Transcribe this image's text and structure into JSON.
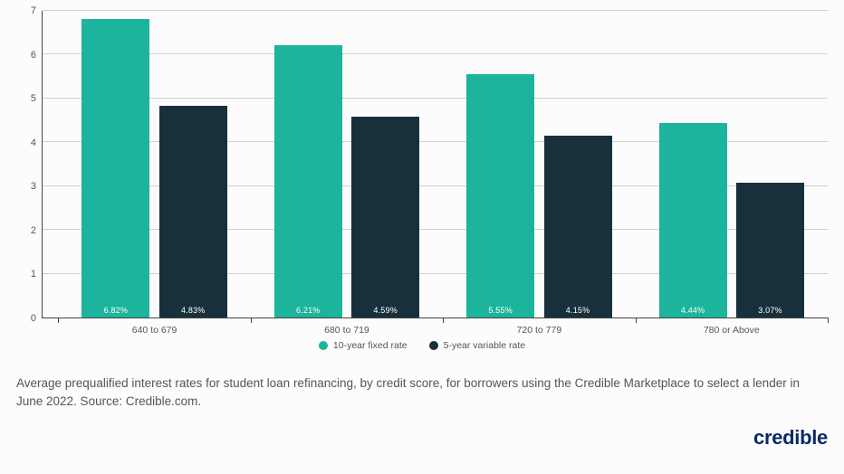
{
  "chart": {
    "type": "bar",
    "ylim": [
      0,
      7
    ],
    "yticks": [
      0,
      1,
      2,
      3,
      4,
      5,
      6,
      7
    ],
    "ytick_labels": [
      "0",
      "1",
      "2",
      "3",
      "4",
      "5",
      "6",
      "7"
    ],
    "ytick_fontsize": 11,
    "grid_color": "#cfcfcf",
    "axis_color": "#444444",
    "background_color": "#fcfcfc",
    "categories": [
      "640 to 679",
      "680 to 719",
      "720 to 779",
      "780 or Above"
    ],
    "category_fontsize": 10.5,
    "group_width_pct": 24,
    "bar_gap_pct": 1.2,
    "series": [
      {
        "name": "10-year fixed rate",
        "color": "#1cb49c",
        "values": [
          6.82,
          6.21,
          5.55,
          4.44
        ],
        "value_labels": [
          "6.82%",
          "6.21%",
          "5.55%",
          "4.44%"
        ]
      },
      {
        "name": "5-year variable rate",
        "color": "#17303c",
        "values": [
          4.83,
          4.59,
          4.15,
          3.07
        ],
        "value_labels": [
          "4.83%",
          "4.59%",
          "4.15%",
          "3.07%"
        ]
      }
    ],
    "bar_value_label_color": "#ffffff",
    "bar_value_label_fontsize": 9
  },
  "legend": {
    "items": [
      {
        "label": "10-year fixed rate",
        "color": "#1cb49c"
      },
      {
        "label": "5-year variable rate",
        "color": "#17303c"
      }
    ],
    "fontsize": 10.5
  },
  "caption": {
    "text": "Average prequalified interest rates for student loan refinancing, by credit score, for borrowers using the Credible Marketplace to select a lender in June 2022. Source: Credible.com.",
    "fontsize": 13.5,
    "color": "#555555"
  },
  "brand": {
    "text": "credible",
    "color": "#0a2a66",
    "fontsize": 22
  }
}
